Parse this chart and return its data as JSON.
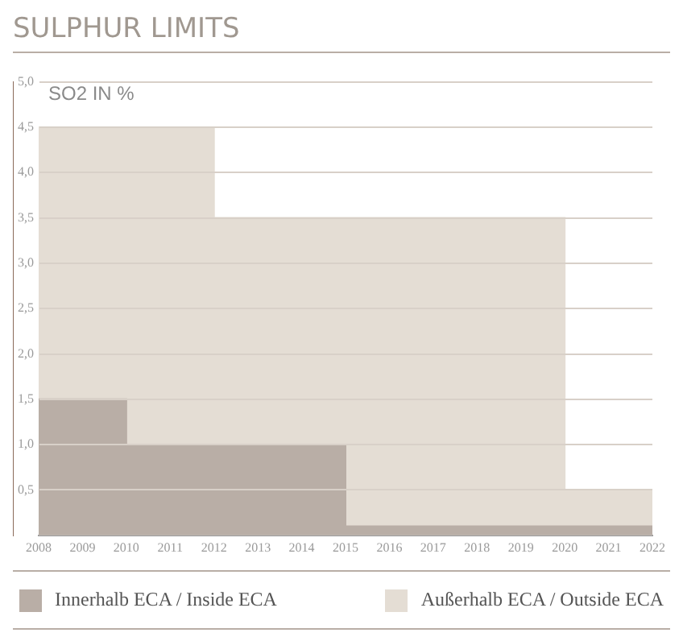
{
  "chart_data": {
    "type": "area",
    "title": "SULPHUR LIMITS",
    "ylabel": "SO2 IN %",
    "series": [
      {
        "name": "Außerhalb ECA / Outside ECA",
        "color": "#e4ddd4",
        "x": [
          2008,
          2012,
          2012,
          2020,
          2020,
          2022
        ],
        "values": [
          4.5,
          4.5,
          3.5,
          3.5,
          0.5,
          0.5
        ]
      },
      {
        "name": "Innerhalb ECA / Inside ECA",
        "color": "#b9aea6",
        "x": [
          2008,
          2010,
          2010,
          2015,
          2015,
          2022
        ],
        "values": [
          1.5,
          1.5,
          1.0,
          1.0,
          0.1,
          0.1
        ]
      }
    ],
    "xlim": [
      2008,
      2022
    ],
    "xticks": [
      2008,
      2009,
      2010,
      2011,
      2012,
      2013,
      2014,
      2015,
      2016,
      2017,
      2018,
      2019,
      2020,
      2021,
      2022
    ],
    "ylim": [
      0,
      5
    ],
    "yticks": [
      {
        "value": 0.5,
        "label": "0,5"
      },
      {
        "value": 1,
        "label": "1,0"
      },
      {
        "value": 1.5,
        "label": "1,5"
      },
      {
        "value": 2,
        "label": "2,0"
      },
      {
        "value": 2.5,
        "label": "2,5"
      },
      {
        "value": 3,
        "label": "3,0"
      },
      {
        "value": 3.5,
        "label": "3,5"
      },
      {
        "value": 4,
        "label": "4,0"
      },
      {
        "value": 4.5,
        "label": "4,5"
      },
      {
        "value": 5,
        "label": "5,0"
      }
    ],
    "grid": "y",
    "legend": "bottom"
  }
}
